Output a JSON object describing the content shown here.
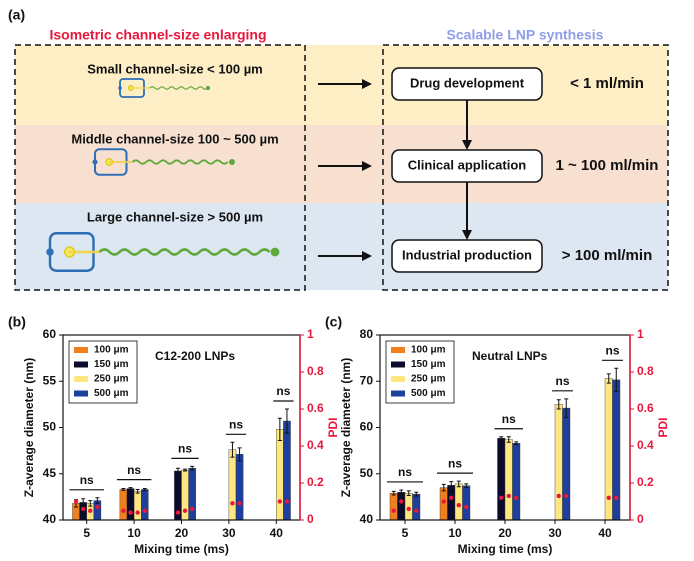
{
  "panel_a": {
    "label": "(a)",
    "left_title": "Isometric  channel-size enlarging",
    "right_title": "Scalable LNP synthesis",
    "rows": [
      {
        "channel": "Small channel-size  < 100 µm",
        "stage": "Drug development",
        "rate": "< 1 ml/min"
      },
      {
        "channel": "Middle channel-size 100 ~ 500 µm",
        "stage": "Clinical application",
        "rate": "1 ~ 100 ml/min"
      },
      {
        "channel": "Large channel-size  > 500 µm",
        "stage": "Industrial production",
        "rate": "> 100 ml/min"
      }
    ]
  },
  "chart_data": [
    {
      "type": "bar",
      "panel": "(b)",
      "title": "C12-200 LNPs",
      "xlabel": "Mixing time (ms)",
      "ylabel": "Z-average diameter (nm)",
      "y2label": "PDI",
      "categories": [
        "5",
        "10",
        "20",
        "30",
        "40"
      ],
      "annotations": [
        "ns",
        "ns",
        "ns",
        "ns",
        "ns"
      ],
      "series": [
        {
          "name": "100 μm",
          "color": "#f07f1e",
          "values": [
            41.8,
            43.3,
            null,
            null,
            null
          ],
          "errors": [
            0.4,
            0.1,
            null,
            null,
            null
          ],
          "pdi": [
            0.1,
            0.05,
            null,
            null,
            null
          ]
        },
        {
          "name": "150 μm",
          "color": "#0b0b2e",
          "values": [
            41.9,
            43.4,
            45.3,
            null,
            null
          ],
          "errors": [
            0.4,
            0.1,
            0.3,
            null,
            null
          ],
          "pdi": [
            0.06,
            0.04,
            0.04,
            null,
            null
          ]
        },
        {
          "name": "250 μm",
          "color": "#ffe780",
          "values": [
            41.8,
            43.1,
            45.4,
            47.6,
            49.8
          ],
          "errors": [
            0.3,
            0.2,
            0.1,
            0.8,
            1.2
          ],
          "pdi": [
            0.05,
            0.04,
            0.05,
            0.09,
            0.1
          ]
        },
        {
          "name": "500 μm",
          "color": "#1d3f9e",
          "values": [
            42.1,
            43.3,
            45.6,
            47.1,
            50.7
          ],
          "errors": [
            0.3,
            0.1,
            0.2,
            0.7,
            1.3
          ],
          "pdi": [
            0.07,
            0.05,
            0.06,
            0.09,
            0.1
          ]
        }
      ],
      "pdi_color": "#e8173b",
      "ylim": [
        40,
        60
      ],
      "yticks": [
        40,
        45,
        50,
        55,
        60
      ],
      "y2lim": [
        0,
        1
      ],
      "y2ticks": [
        0,
        0.2,
        0.4,
        0.6,
        0.8,
        1
      ]
    },
    {
      "type": "bar",
      "panel": "(c)",
      "title": "Neutral LNPs",
      "xlabel": "Mixing time (ms)",
      "ylabel": "Z-average diameter (nm)",
      "y2label": "PDI",
      "categories": [
        "5",
        "10",
        "20",
        "30",
        "40"
      ],
      "annotations": [
        "ns",
        "ns",
        "ns",
        "ns",
        "ns"
      ],
      "series": [
        {
          "name": "100 μm",
          "color": "#f07f1e",
          "values": [
            45.8,
            47.0,
            null,
            null,
            null
          ],
          "errors": [
            0.4,
            0.7,
            null,
            null,
            null
          ],
          "pdi": [
            0.05,
            0.1,
            null,
            null,
            null
          ]
        },
        {
          "name": "150 μm",
          "color": "#0b0b2e",
          "values": [
            46.0,
            47.5,
            57.7,
            null,
            null
          ],
          "errors": [
            0.5,
            0.8,
            0.3,
            null,
            null
          ],
          "pdi": [
            0.1,
            0.12,
            0.12,
            null,
            null
          ]
        },
        {
          "name": "250 μm",
          "color": "#ffe780",
          "values": [
            45.8,
            47.8,
            57.4,
            65.0,
            70.6
          ],
          "errors": [
            0.5,
            0.6,
            0.6,
            1.0,
            1.0
          ],
          "pdi": [
            0.06,
            0.08,
            0.13,
            0.13,
            0.12
          ]
        },
        {
          "name": "500 μm",
          "color": "#1d3f9e",
          "values": [
            45.6,
            47.4,
            56.6,
            64.2,
            70.3
          ],
          "errors": [
            0.4,
            0.4,
            0.3,
            2.0,
            2.5
          ],
          "pdi": [
            0.05,
            0.07,
            0.12,
            0.13,
            0.12
          ]
        }
      ],
      "pdi_color": "#e8173b",
      "ylim": [
        40,
        80
      ],
      "yticks": [
        40,
        50,
        60,
        70,
        80
      ],
      "y2lim": [
        0,
        1
      ],
      "y2ticks": [
        0,
        0.2,
        0.4,
        0.6,
        0.8,
        1
      ]
    }
  ]
}
